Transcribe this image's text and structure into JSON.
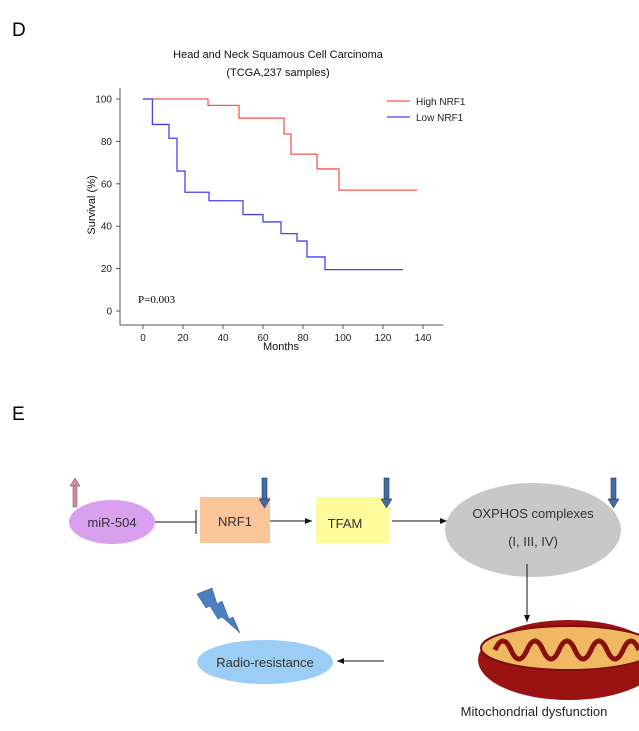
{
  "panels": {
    "d_label": "D",
    "e_label": "E"
  },
  "chart_data": {
    "type": "line",
    "step": true,
    "title": "Head and Neck Squamous Cell Carcinoma",
    "subtitle": "(TCGA,237 samples)",
    "xlabel": "Months",
    "ylabel": "Survival (%)",
    "xlim": [
      0,
      140
    ],
    "ylim": [
      0,
      100
    ],
    "xticks": [
      0,
      20,
      40,
      60,
      80,
      100,
      120,
      140
    ],
    "yticks": [
      0,
      20,
      40,
      60,
      80,
      100
    ],
    "grid": false,
    "legend": "top-right",
    "annotation": "P=0.003",
    "series": [
      {
        "name": "High NRF1",
        "color": "#ff5555",
        "x": [
          0,
          32.5,
          48,
          70.5,
          74,
          87,
          98,
          137
        ],
        "y": [
          100,
          97,
          91,
          83.5,
          74,
          67,
          57,
          57
        ]
      },
      {
        "name": "Low NRF1",
        "color": "#4444ee",
        "x": [
          0,
          4.7,
          13,
          17,
          21,
          33,
          50,
          60,
          69,
          77,
          82,
          91,
          130
        ],
        "y": [
          100,
          88,
          81.5,
          66,
          56,
          52,
          45.5,
          42,
          36.5,
          33,
          25.5,
          19.5,
          19.5
        ]
      }
    ]
  },
  "diagram": {
    "mir": "miR-504",
    "nrf1": "NRF1",
    "tfam": "TFAM",
    "oxphos": "OXPHOS complexes",
    "oxphos_sub": "(I, III, IV)",
    "radio": "Radio-resistance",
    "mito": "Mitochondrial dysfunction",
    "colors": {
      "mir": "#d9a0f0",
      "nrf1": "#fbc59a",
      "tfam": "#fdfb9b",
      "oxphos": "#c8c8c8",
      "radio": "#9ccdf5",
      "up_arrow": "#d98aa0",
      "down_arrow": "#3f6fa8",
      "bolt": "#4a7fc0"
    }
  }
}
